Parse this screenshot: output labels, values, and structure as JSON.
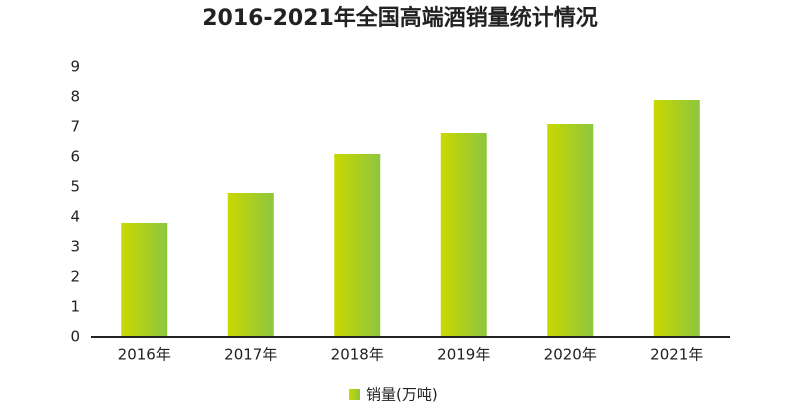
{
  "chart_data": {
    "type": "bar",
    "title": "2016-2021年全国高端酒销量统计情况",
    "categories": [
      "2016年",
      "2017年",
      "2018年",
      "2019年",
      "2020年",
      "2021年"
    ],
    "series": [
      {
        "name": "销量(万吨)",
        "color": [
          "#c9d800",
          "#8dc63f"
        ],
        "values": [
          3.8,
          4.8,
          6.1,
          6.8,
          7.1,
          7.9
        ]
      }
    ],
    "ylim": [
      0,
      9
    ],
    "yticks": [
      0,
      1,
      2,
      3,
      4,
      5,
      6,
      7,
      8,
      9
    ],
    "grid": false
  }
}
